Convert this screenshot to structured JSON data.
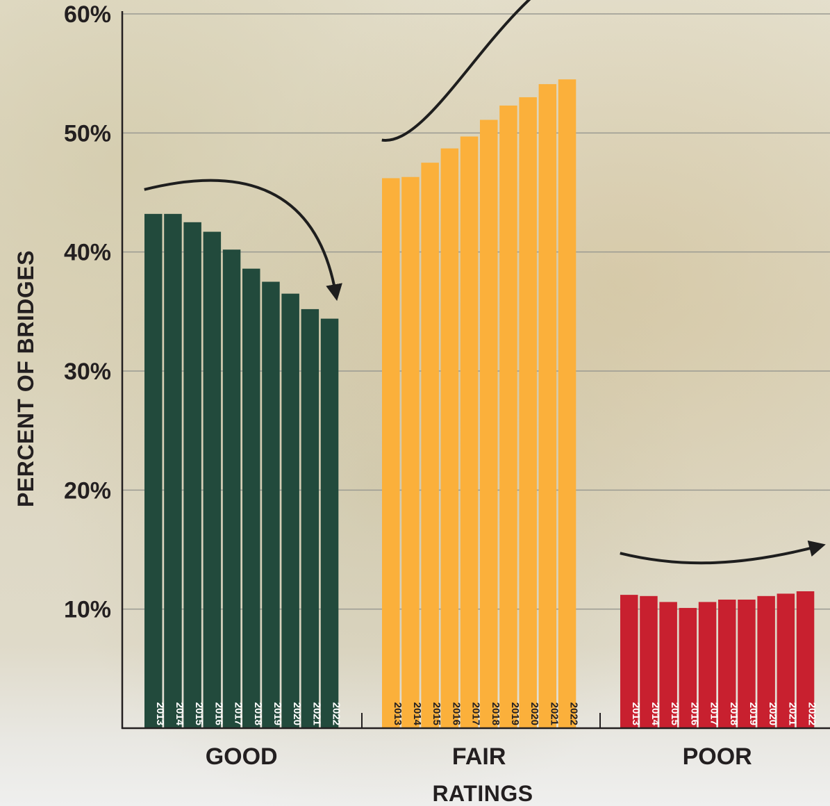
{
  "chart_data": {
    "type": "bar",
    "ylabel": "PERCENT OF BRIDGES",
    "xlabel": "RATINGS",
    "ylim": [
      0,
      60
    ],
    "yticks": [
      10,
      20,
      30,
      40,
      50,
      60
    ],
    "ytick_labels": [
      "10%",
      "20%",
      "30%",
      "40%",
      "50%",
      "60%"
    ],
    "grid": true,
    "years": [
      "2013",
      "2014",
      "2015",
      "2016",
      "2017",
      "2018",
      "2019",
      "2020",
      "2021",
      "2022"
    ],
    "categories": [
      "GOOD",
      "FAIR",
      "POOR"
    ],
    "groups": [
      {
        "name": "GOOD",
        "color": "#224a3c",
        "year_label_color": "#ffffff",
        "trend": "down",
        "values": [
          43.2,
          43.2,
          42.5,
          41.7,
          40.2,
          38.6,
          37.5,
          36.5,
          35.2,
          34.4
        ]
      },
      {
        "name": "FAIR",
        "color": "#fbb03b",
        "year_label_color": "#231f20",
        "trend": "up",
        "values": [
          46.2,
          46.3,
          47.5,
          48.7,
          49.7,
          51.1,
          52.3,
          53.0,
          54.1,
          54.5
        ]
      },
      {
        "name": "POOR",
        "color": "#c8202f",
        "year_label_color": "#ffffff",
        "trend": "up",
        "values": [
          11.2,
          11.1,
          10.6,
          10.1,
          10.6,
          10.8,
          10.8,
          11.1,
          11.3,
          11.5
        ]
      }
    ]
  }
}
